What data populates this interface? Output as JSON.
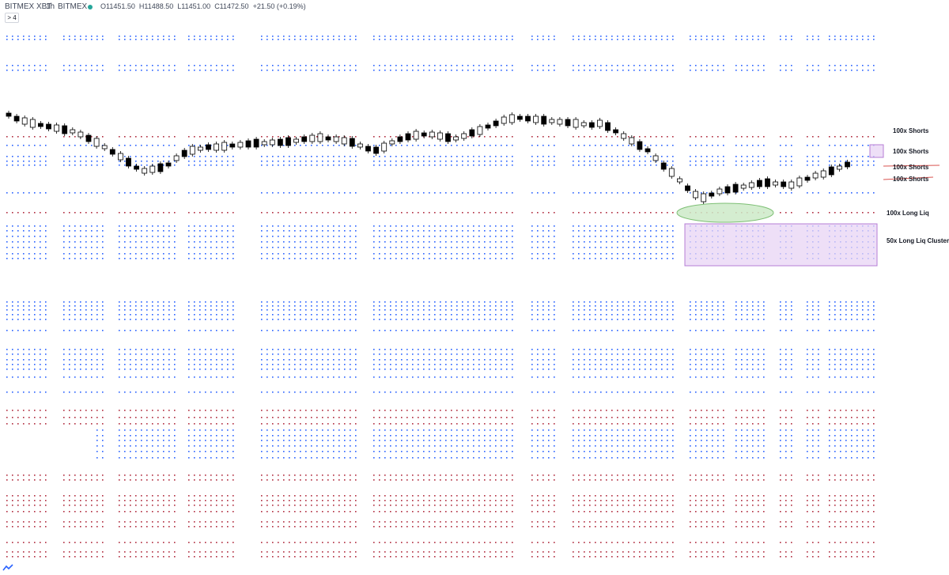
{
  "header": {
    "symbol": "BITMEX XBT",
    "interval": "1h",
    "exchange": "BITMEX",
    "open": "O11451.50",
    "high": "H11488.50",
    "low": "L11451.00",
    "close": "C11472.50",
    "change": "+21.50 (+0.19%)",
    "collapse_label": "> 4",
    "status_color": "#26a69a"
  },
  "annotations": {
    "label_1": "100x Shorts",
    "label_2": "100x Shorts",
    "label_3": "100x Shorts",
    "label_4": "100x Shorts",
    "label_5": "100x Long Liq",
    "label_6": "50x Long Liq Cluster"
  },
  "colors": {
    "dot_blue": "#2962ff",
    "dot_red": "#b02b3e",
    "highlight_purple": "#d8b4f0",
    "highlight_green": "#b9e4b3",
    "bear_candle": "#000000",
    "bull_candle": "#ffffff",
    "strike_red": "#d9534f"
  },
  "icons": {
    "status": "status-dot-icon",
    "logo": "tradingview-logo-icon"
  }
}
